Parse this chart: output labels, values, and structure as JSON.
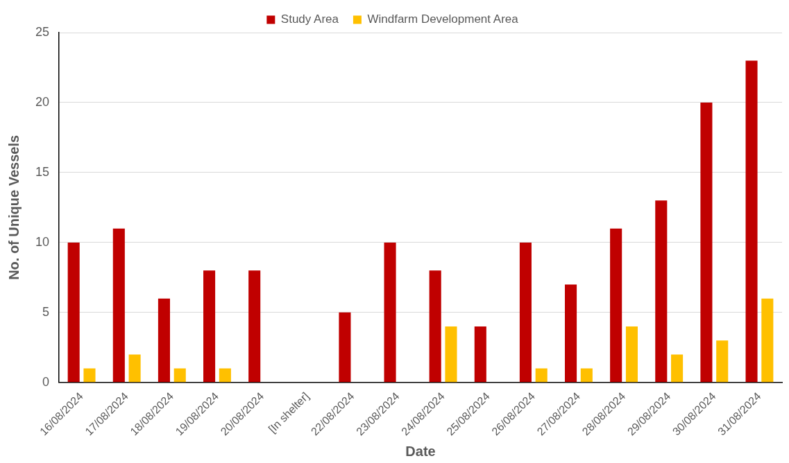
{
  "chart_data": {
    "type": "bar",
    "xlabel": "Date",
    "ylabel": "No. of Unique Vessels",
    "categories": [
      "16/08/2024",
      "17/08/2024",
      "18/08/2024",
      "19/08/2024",
      "20/08/2024",
      "[In shelter]",
      "22/08/2024",
      "23/08/2024",
      "24/08/2024",
      "25/08/2024",
      "26/08/2024",
      "27/08/2024",
      "28/08/2024",
      "29/08/2024",
      "30/08/2024",
      "31/08/2024"
    ],
    "series": [
      {
        "name": "Study Area",
        "color": "#c00000",
        "values": [
          10,
          11,
          6,
          8,
          8,
          null,
          5,
          10,
          8,
          4,
          10,
          7,
          11,
          13,
          20,
          23
        ]
      },
      {
        "name": "Windfarm Development Area",
        "color": "#ffc000",
        "values": [
          1,
          2,
          1,
          1,
          0,
          null,
          0,
          0,
          4,
          0,
          1,
          1,
          4,
          2,
          3,
          6
        ]
      }
    ],
    "ylim": [
      0,
      25
    ],
    "yticks": [
      0,
      5,
      10,
      15,
      20,
      25
    ],
    "grid": "y",
    "legend": "top"
  }
}
